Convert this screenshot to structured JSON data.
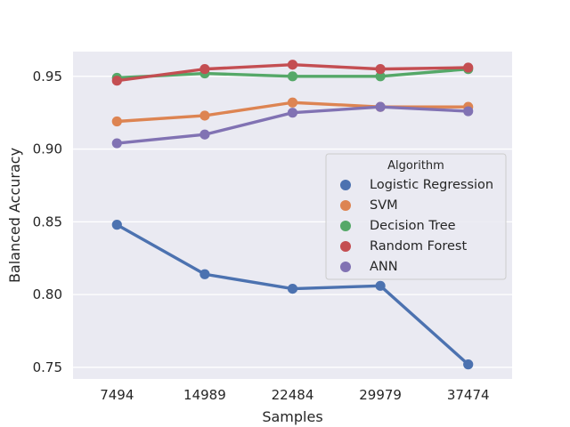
{
  "chart_data": {
    "type": "line",
    "x": [
      "7494",
      "14989",
      "22484",
      "29979",
      "37474"
    ],
    "xlabel": "Samples",
    "ylabel": "Balanced Accuracy",
    "ylim": [
      0.742,
      0.967
    ],
    "yticks": [
      "0.75",
      "0.80",
      "0.85",
      "0.90",
      "0.95"
    ],
    "grid": true,
    "legend": {
      "title": "Algorithm",
      "placement": "center-right"
    },
    "series": [
      {
        "name": "Logistic Regression",
        "color": "#4c72b0",
        "values": [
          0.848,
          0.814,
          0.804,
          0.806,
          0.752
        ]
      },
      {
        "name": "SVM",
        "color": "#dd8452",
        "values": [
          0.919,
          0.923,
          0.932,
          0.929,
          0.929
        ]
      },
      {
        "name": "Decision Tree",
        "color": "#55a868",
        "values": [
          0.949,
          0.952,
          0.95,
          0.95,
          0.955
        ]
      },
      {
        "name": "Random Forest",
        "color": "#c44e52",
        "values": [
          0.947,
          0.955,
          0.958,
          0.955,
          0.956
        ]
      },
      {
        "name": "ANN",
        "color": "#8172b3",
        "values": [
          0.904,
          0.91,
          0.925,
          0.929,
          0.926
        ]
      }
    ]
  },
  "style": {
    "plot_background": "#eaeaf2",
    "grid_color": "#ffffff",
    "text_color": "#262626"
  }
}
